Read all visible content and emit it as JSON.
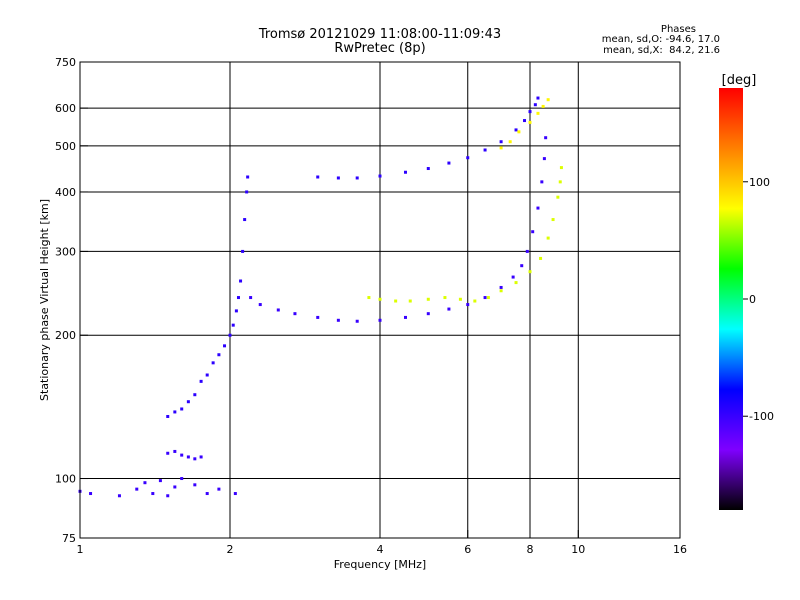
{
  "header": {
    "title": "Tromsø 20121029 11:08:00-11:09:43",
    "subtitle": "RwPretec (8p)"
  },
  "phase_info": {
    "label": "Phases",
    "line_o": "mean, sd,O: -94.6, 17.0",
    "line_x": "mean, sd,X:  84.2, 21.6"
  },
  "chart_data": {
    "type": "scatter",
    "xlabel": "Frequency [MHz]",
    "ylabel": "Stationary phase Virtual Height [km]",
    "xscale": "log2",
    "yscale": "log",
    "xlim": [
      1,
      16
    ],
    "ylim": [
      75,
      750
    ],
    "xticks": [
      1,
      2,
      4,
      6,
      8,
      10,
      16
    ],
    "yticks": [
      75,
      100,
      200,
      300,
      400,
      500,
      600,
      750
    ],
    "grid_x": [
      2,
      4,
      6,
      8,
      10
    ],
    "grid_y": [
      100,
      200,
      300,
      400,
      500,
      600
    ],
    "colorbar": {
      "label": "[deg]",
      "range": [
        -180,
        180
      ],
      "ticks": [
        100,
        0,
        -100
      ],
      "stops": [
        "#000000",
        "#7f00ff",
        "#0000ff",
        "#00ffff",
        "#00ff00",
        "#ffff00",
        "#ff8000",
        "#ff0000"
      ]
    },
    "series": [
      {
        "trace": "o_bottom_low",
        "phase": -100,
        "points": [
          [
            1.0,
            94
          ],
          [
            1.05,
            93
          ],
          [
            1.2,
            92
          ],
          [
            1.3,
            95
          ],
          [
            1.35,
            98
          ],
          [
            1.4,
            93
          ],
          [
            1.45,
            99
          ],
          [
            1.5,
            92
          ],
          [
            1.55,
            96
          ],
          [
            1.6,
            100
          ],
          [
            1.7,
            97
          ],
          [
            1.8,
            93
          ],
          [
            1.9,
            95
          ],
          [
            2.05,
            93
          ]
        ]
      },
      {
        "trace": "o_f1_rise",
        "phase": -95,
        "points": [
          [
            1.5,
            135
          ],
          [
            1.55,
            138
          ],
          [
            1.6,
            140
          ],
          [
            1.65,
            145
          ],
          [
            1.7,
            150
          ],
          [
            1.75,
            160
          ],
          [
            1.8,
            165
          ],
          [
            1.85,
            175
          ],
          [
            1.9,
            182
          ],
          [
            1.95,
            190
          ],
          [
            2.0,
            200
          ],
          [
            2.03,
            210
          ],
          [
            2.06,
            225
          ],
          [
            2.08,
            240
          ],
          [
            2.1,
            260
          ],
          [
            2.12,
            300
          ],
          [
            2.14,
            350
          ],
          [
            2.16,
            400
          ],
          [
            2.17,
            430
          ]
        ]
      },
      {
        "trace": "o_f1_cusp_low",
        "phase": -100,
        "points": [
          [
            1.5,
            113
          ],
          [
            1.55,
            114
          ],
          [
            1.6,
            112
          ],
          [
            1.65,
            111
          ],
          [
            1.7,
            110
          ],
          [
            1.75,
            111
          ]
        ]
      },
      {
        "trace": "o_f2",
        "phase": -100,
        "points": [
          [
            2.2,
            240
          ],
          [
            2.3,
            232
          ],
          [
            2.5,
            226
          ],
          [
            2.7,
            222
          ],
          [
            3.0,
            218
          ],
          [
            3.3,
            215
          ],
          [
            3.6,
            214
          ],
          [
            4.0,
            215
          ],
          [
            4.5,
            218
          ],
          [
            5.0,
            222
          ],
          [
            5.5,
            227
          ],
          [
            6.0,
            232
          ],
          [
            6.5,
            240
          ],
          [
            7.0,
            252
          ],
          [
            7.4,
            265
          ],
          [
            7.7,
            280
          ],
          [
            7.9,
            300
          ],
          [
            8.1,
            330
          ],
          [
            8.3,
            370
          ],
          [
            8.45,
            420
          ],
          [
            8.55,
            470
          ],
          [
            8.6,
            520
          ]
        ]
      },
      {
        "trace": "o_f2_upper",
        "phase": -95,
        "points": [
          [
            3.0,
            430
          ],
          [
            3.3,
            428
          ],
          [
            3.6,
            428
          ],
          [
            4.0,
            432
          ],
          [
            4.5,
            440
          ],
          [
            5.0,
            448
          ],
          [
            5.5,
            460
          ],
          [
            6.0,
            472
          ],
          [
            6.5,
            490
          ],
          [
            7.0,
            510
          ],
          [
            7.5,
            540
          ],
          [
            7.8,
            565
          ],
          [
            8.0,
            590
          ],
          [
            8.2,
            610
          ],
          [
            8.3,
            630
          ]
        ]
      },
      {
        "trace": "x_f2",
        "phase": 70,
        "points": [
          [
            3.8,
            240
          ],
          [
            4.0,
            238
          ],
          [
            4.3,
            236
          ],
          [
            4.6,
            236
          ],
          [
            5.0,
            238
          ],
          [
            5.4,
            240
          ],
          [
            5.8,
            238
          ],
          [
            6.2,
            236
          ],
          [
            6.6,
            240
          ],
          [
            7.0,
            248
          ],
          [
            7.5,
            258
          ],
          [
            8.0,
            272
          ],
          [
            8.4,
            290
          ],
          [
            8.7,
            320
          ],
          [
            8.9,
            350
          ],
          [
            9.1,
            390
          ],
          [
            9.2,
            420
          ],
          [
            9.25,
            450
          ]
        ]
      },
      {
        "trace": "x_f2_upper",
        "phase": 80,
        "points": [
          [
            7.0,
            495
          ],
          [
            7.3,
            510
          ],
          [
            7.6,
            535
          ],
          [
            8.0,
            560
          ],
          [
            8.3,
            585
          ],
          [
            8.5,
            605
          ],
          [
            8.7,
            625
          ]
        ]
      }
    ]
  }
}
